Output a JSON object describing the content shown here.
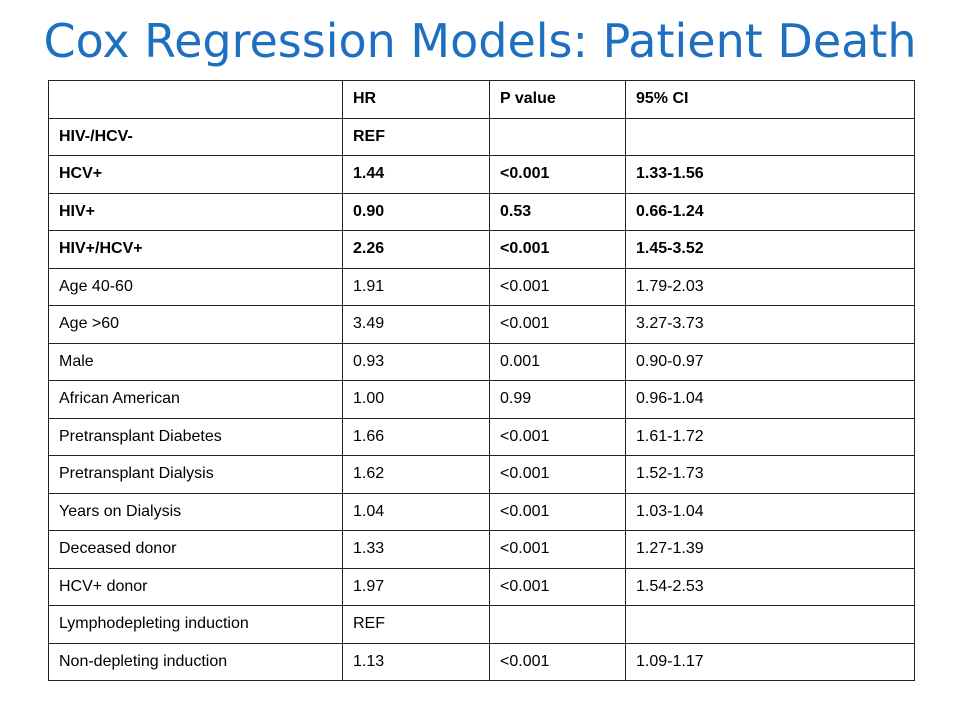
{
  "title": "Cox Regression Models: Patient Death",
  "table": {
    "header": [
      "",
      "HR",
      "P value",
      "95% CI"
    ],
    "rows": [
      {
        "label": "HIV-/HCV-",
        "hr": "REF",
        "p": "",
        "ci": "",
        "bold": true
      },
      {
        "label": "HCV+",
        "hr": "1.44",
        "p": "<0.001",
        "ci": "1.33-1.56",
        "bold": true
      },
      {
        "label": "HIV+",
        "hr": "0.90",
        "p": "0.53",
        "ci": "0.66-1.24",
        "bold": true
      },
      {
        "label": "HIV+/HCV+",
        "hr": "2.26",
        "p": "<0.001",
        "ci": "1.45-3.52",
        "bold": true
      },
      {
        "label": "Age 40-60",
        "hr": "1.91",
        "p": "<0.001",
        "ci": "1.79-2.03",
        "bold": false
      },
      {
        "label": "Age >60",
        "hr": "3.49",
        "p": "<0.001",
        "ci": "3.27-3.73",
        "bold": false
      },
      {
        "label": "Male",
        "hr": "0.93",
        "p": "0.001",
        "ci": "0.90-0.97",
        "bold": false
      },
      {
        "label": "African American",
        "hr": "1.00",
        "p": "0.99",
        "ci": "0.96-1.04",
        "bold": false
      },
      {
        "label": "Pretransplant Diabetes",
        "hr": "1.66",
        "p": "<0.001",
        "ci": "1.61-1.72",
        "bold": false
      },
      {
        "label": "Pretransplant Dialysis",
        "hr": "1.62",
        "p": "<0.001",
        "ci": "1.52-1.73",
        "bold": false
      },
      {
        "label": "Years on Dialysis",
        "hr": "1.04",
        "p": "<0.001",
        "ci": "1.03-1.04",
        "bold": false
      },
      {
        "label": "Deceased donor",
        "hr": "1.33",
        "p": "<0.001",
        "ci": "1.27-1.39",
        "bold": false
      },
      {
        "label": "HCV+ donor",
        "hr": "1.97",
        "p": "<0.001",
        "ci": "1.54-2.53",
        "bold": false
      },
      {
        "label": "Lymphodepleting induction",
        "hr": "REF",
        "p": "",
        "ci": "",
        "bold": false
      },
      {
        "label": "Non-depleting induction",
        "hr": "1.13",
        "p": "<0.001",
        "ci": "1.09-1.17",
        "bold": false
      }
    ]
  },
  "colors": {
    "title": "#1f6fc0",
    "border": "#222222",
    "text": "#000000"
  }
}
